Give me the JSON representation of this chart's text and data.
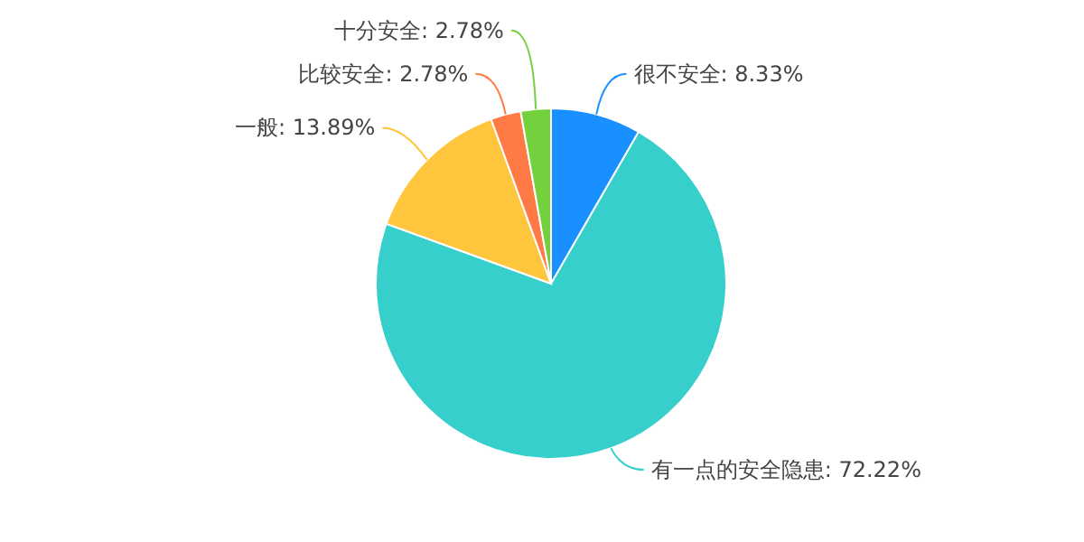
{
  "chart_data": {
    "type": "pie",
    "categories": [
      "很不安全",
      "有一点的安全隐患",
      "一般",
      "比较安全",
      "十分安全"
    ],
    "values": [
      8.33,
      72.22,
      13.89,
      2.78,
      2.78
    ],
    "value_labels": [
      "8.33%",
      "72.22%",
      "13.89%",
      "2.78%",
      "2.78%"
    ],
    "colors": [
      "#1890ff",
      "#36cfcb",
      "#ffc53d",
      "#ff7a45",
      "#73d13d"
    ]
  }
}
